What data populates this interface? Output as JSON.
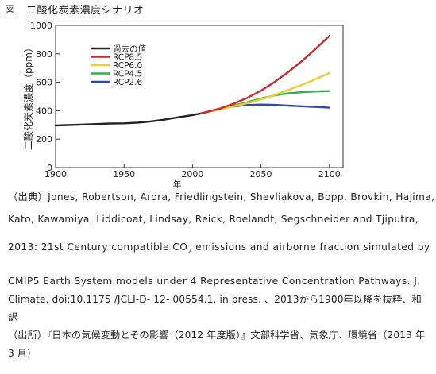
{
  "figure": {
    "title": "図　二酸化炭素濃度シナリオ"
  },
  "chart_data": {
    "type": "line",
    "ylabel": "二酸化炭素濃度（ppm）",
    "xlabel": "年",
    "xlim": [
      1900,
      2110
    ],
    "ylim": [
      0,
      1000
    ],
    "xticks": [
      1900,
      1950,
      2000,
      2050,
      2100
    ],
    "yticks": [
      0,
      200,
      400,
      600,
      800,
      1000
    ],
    "legend_position": "top-left",
    "grid": false,
    "series": [
      {
        "name": "過去の値",
        "color": "#222222",
        "x": [
          1900,
          1920,
          1940,
          1950,
          1960,
          1970,
          1980,
          1990,
          2000,
          2005
        ],
        "y": [
          296,
          303,
          310,
          311,
          316,
          325,
          338,
          354,
          369,
          379
        ]
      },
      {
        "name": "RCP8.5",
        "color": "#c8282d",
        "x": [
          2005,
          2010,
          2020,
          2030,
          2040,
          2050,
          2060,
          2070,
          2080,
          2090,
          2100
        ],
        "y": [
          379,
          390,
          415,
          449,
          490,
          541,
          602,
          672,
          750,
          835,
          926
        ]
      },
      {
        "name": "RCP6.0",
        "color": "#f2cc2c",
        "x": [
          2005,
          2010,
          2020,
          2030,
          2040,
          2050,
          2060,
          2070,
          2080,
          2090,
          2100
        ],
        "y": [
          379,
          389,
          409,
          430,
          453,
          480,
          510,
          545,
          582,
          622,
          665
        ]
      },
      {
        "name": "RCP4.5",
        "color": "#2fb14d",
        "x": [
          2005,
          2010,
          2020,
          2030,
          2040,
          2050,
          2060,
          2070,
          2080,
          2090,
          2100
        ],
        "y": [
          379,
          389,
          412,
          435,
          460,
          486,
          508,
          522,
          530,
          535,
          538
        ]
      },
      {
        "name": "RCP2.6",
        "color": "#2f4ca8",
        "x": [
          2005,
          2010,
          2020,
          2030,
          2040,
          2050,
          2060,
          2070,
          2080,
          2090,
          2100
        ],
        "y": [
          379,
          389,
          412,
          430,
          440,
          443,
          441,
          436,
          431,
          426,
          421
        ]
      }
    ]
  },
  "caption": {
    "line1": "（出典）Jones, Robertson, Arora, Friedlingstein, Shevliakova, Bopp, Brovkin, Hajima,",
    "line2": "Kato, Kawamiya, Liddicoat, Lindsay, Reick, Roelandt, Segschneider and Tjiputra,",
    "line3_a": "2013: 21st Century compatible CO",
    "line3_sub": "2",
    "line3_b": " emissions and airborne fraction simulated by",
    "line4": "CMIP5 Earth System models under 4 Representative Concentration Pathways. J.",
    "line5": "Climate. doi:10.1175 /JCLI-D- 12- 00554.1, in press. 、2013から1900年以降を抜粋、和",
    "line6": "訳",
    "line7": "（出所）『日本の気候変動とその影響（2012 年度版）』文部科学省、気象庁、環境省（2013 年",
    "line8": "3 月）"
  }
}
